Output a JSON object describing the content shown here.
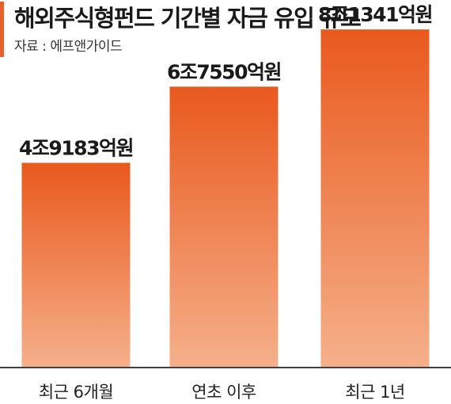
{
  "header": {
    "title": "해외주식형펀드 기간별 자금 유입 규모",
    "source": "자료 : 에프앤가이드"
  },
  "colors": {
    "accent": "#e8612a",
    "bar_top": "#e9591d",
    "bar_bottom": "#f5b08a",
    "baseline": "#444444"
  },
  "chart_data": {
    "type": "bar",
    "categories": [
      "최근 6개월",
      "연초 이후",
      "최근 1년"
    ],
    "values": [
      49183,
      67550,
      81341
    ],
    "value_labels": [
      "4조9183억원",
      "6조7550억원",
      "8조1341억원"
    ],
    "unit": "억원",
    "ylim": [
      0,
      85000
    ],
    "grid": false,
    "legend": "none"
  }
}
